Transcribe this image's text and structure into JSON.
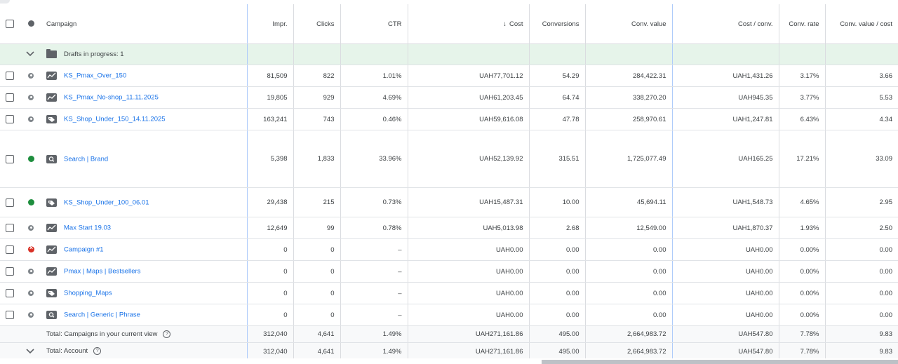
{
  "columns": {
    "campaign": "Campaign",
    "impr": "Impr.",
    "clicks": "Clicks",
    "ctr": "CTR",
    "cost_arrow": "↓",
    "cost": "Cost",
    "conversions": "Conversions",
    "conv_value": "Conv. value",
    "cost_per_conv": "Cost / conv.",
    "conv_rate": "Conv. rate",
    "conv_value_per_cost": "Conv. value / cost"
  },
  "drafts": {
    "label": "Drafts in progress: 1"
  },
  "rows": [
    {
      "status": "paused",
      "type": "pmax-icon",
      "name": "KS_Pmax_Over_150",
      "impr": "81,509",
      "clicks": "822",
      "ctr": "1.01%",
      "cost": "UAH77,701.12",
      "conv": "54.29",
      "conv_value": "284,422.31",
      "cost_per_conv": "UAH1,431.26",
      "conv_rate": "3.17%",
      "cvpc": "3.66"
    },
    {
      "status": "paused",
      "type": "pmax-icon",
      "name": "KS_Pmax_No-shop_11.11.2025",
      "impr": "19,805",
      "clicks": "929",
      "ctr": "4.69%",
      "cost": "UAH61,203.45",
      "conv": "64.74",
      "conv_value": "338,270.20",
      "cost_per_conv": "UAH945.35",
      "conv_rate": "3.77%",
      "cvpc": "5.53"
    },
    {
      "status": "paused",
      "type": "shopping-tag-icon",
      "name": "KS_Shop_Under_150_14.11.2025",
      "impr": "163,241",
      "clicks": "743",
      "ctr": "0.46%",
      "cost": "UAH59,616.08",
      "conv": "47.78",
      "conv_value": "258,970.61",
      "cost_per_conv": "UAH1,247.81",
      "conv_rate": "6.43%",
      "cvpc": "4.34"
    },
    {
      "status": "enabled",
      "type": "search-icon",
      "name": "Search | Brand",
      "impr": "5,398",
      "clicks": "1,833",
      "ctr": "33.96%",
      "cost": "UAH52,139.92",
      "conv": "315.51",
      "conv_value": "1,725,077.49",
      "cost_per_conv": "UAH165.25",
      "conv_rate": "17.21%",
      "cvpc": "33.09"
    },
    {
      "status": "enabled",
      "type": "shopping-tag-icon",
      "name": "KS_Shop_Under_100_06.01",
      "impr": "29,438",
      "clicks": "215",
      "ctr": "0.73%",
      "cost": "UAH15,487.31",
      "conv": "10.00",
      "conv_value": "45,694.11",
      "cost_per_conv": "UAH1,548.73",
      "conv_rate": "4.65%",
      "cvpc": "2.95"
    },
    {
      "status": "paused",
      "type": "pmax-icon",
      "name": "Max Start 19.03",
      "impr": "12,649",
      "clicks": "99",
      "ctr": "0.78%",
      "cost": "UAH5,013.98",
      "conv": "2.68",
      "conv_value": "12,549.00",
      "cost_per_conv": "UAH1,870.37",
      "conv_rate": "1.93%",
      "cvpc": "2.50"
    },
    {
      "status": "removed",
      "type": "pmax-icon",
      "name": "Campaign #1",
      "impr": "0",
      "clicks": "0",
      "ctr": "–",
      "cost": "UAH0.00",
      "conv": "0.00",
      "conv_value": "0.00",
      "cost_per_conv": "UAH0.00",
      "conv_rate": "0.00%",
      "cvpc": "0.00"
    },
    {
      "status": "paused",
      "type": "pmax-icon",
      "name": "Pmax | Maps | Bestsellers",
      "impr": "0",
      "clicks": "0",
      "ctr": "–",
      "cost": "UAH0.00",
      "conv": "0.00",
      "conv_value": "0.00",
      "cost_per_conv": "UAH0.00",
      "conv_rate": "0.00%",
      "cvpc": "0.00"
    },
    {
      "status": "paused",
      "type": "shopping-tag-icon",
      "name": "Shopping_Maps",
      "impr": "0",
      "clicks": "0",
      "ctr": "–",
      "cost": "UAH0.00",
      "conv": "0.00",
      "conv_value": "0.00",
      "cost_per_conv": "UAH0.00",
      "conv_rate": "0.00%",
      "cvpc": "0.00"
    },
    {
      "status": "paused",
      "type": "search-icon",
      "name": "Search | Generic | Phrase",
      "impr": "0",
      "clicks": "0",
      "ctr": "–",
      "cost": "UAH0.00",
      "conv": "0.00",
      "conv_value": "0.00",
      "cost_per_conv": "UAH0.00",
      "conv_rate": "0.00%",
      "cvpc": "0.00"
    }
  ],
  "totals": [
    {
      "label": "Total: Campaigns in your current view",
      "impr": "312,040",
      "clicks": "4,641",
      "ctr": "1.49%",
      "cost": "UAH271,161.86",
      "conv": "495.00",
      "conv_value": "2,664,983.72",
      "cost_per_conv": "UAH547.80",
      "conv_rate": "7.78%",
      "cvpc": "9.83"
    },
    {
      "label": "Total: Account",
      "impr": "312,040",
      "clicks": "4,641",
      "ctr": "1.49%",
      "cost": "UAH271,161.86",
      "conv": "495.00",
      "conv_value": "2,664,983.72",
      "cost_per_conv": "UAH547.80",
      "conv_rate": "7.78%",
      "cvpc": "9.83"
    }
  ],
  "help_glyph": "?",
  "colors": {
    "link": "#1a73e8",
    "enabled": "#1e8e3e",
    "removed": "#d93025",
    "paused": "#80868b",
    "draft_bg": "#e6f4ea"
  }
}
